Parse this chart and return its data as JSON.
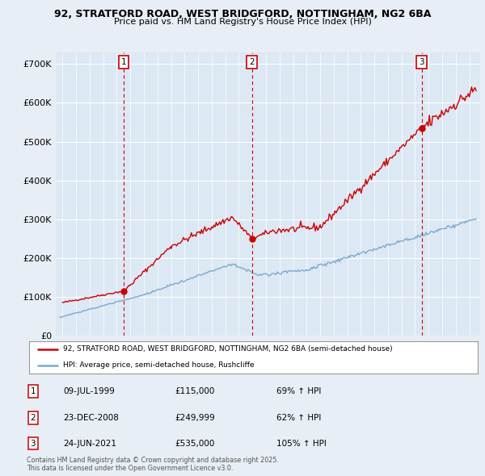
{
  "title_line1": "92, STRATFORD ROAD, WEST BRIDGFORD, NOTTINGHAM, NG2 6BA",
  "title_line2": "Price paid vs. HM Land Registry's House Price Index (HPI)",
  "bg_color": "#e8eef5",
  "plot_bg_color": "#dce8f4",
  "red_color": "#cc0000",
  "blue_color": "#7aaad0",
  "ylim": [
    0,
    730000
  ],
  "yticks": [
    0,
    100000,
    200000,
    300000,
    400000,
    500000,
    600000,
    700000
  ],
  "ytick_labels": [
    "£0",
    "£100K",
    "£200K",
    "£300K",
    "£400K",
    "£500K",
    "£600K",
    "£700K"
  ],
  "sale_dates_num": [
    1999.52,
    2008.97,
    2021.48
  ],
  "sale_prices": [
    115000,
    249999,
    535000
  ],
  "sale_labels": [
    "1",
    "2",
    "3"
  ],
  "legend_entries": [
    "92, STRATFORD ROAD, WEST BRIDGFORD, NOTTINGHAM, NG2 6BA (semi-detached house)",
    "HPI: Average price, semi-detached house, Rushcliffe"
  ],
  "table_rows": [
    [
      "1",
      "09-JUL-1999",
      "£115,000",
      "69% ↑ HPI"
    ],
    [
      "2",
      "23-DEC-2008",
      "£249,999",
      "62% ↑ HPI"
    ],
    [
      "3",
      "24-JUN-2021",
      "£535,000",
      "105% ↑ HPI"
    ]
  ],
  "footnote": "Contains HM Land Registry data © Crown copyright and database right 2025.\nThis data is licensed under the Open Government Licence v3.0.",
  "xmin": 1994.5,
  "xmax": 2025.8
}
